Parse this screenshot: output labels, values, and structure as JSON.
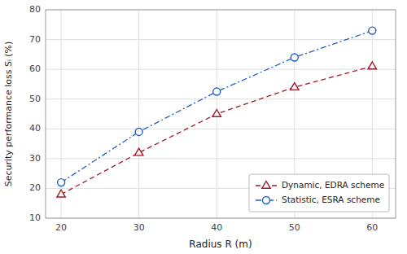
{
  "chart_data": {
    "type": "line",
    "x": [
      20,
      30,
      40,
      50,
      60
    ],
    "series": [
      {
        "name": "Dynamic, EDRA scheme",
        "color": "#A0192A",
        "values": [
          18.0,
          32.0,
          45.0,
          54.0,
          61.0
        ],
        "marker": "triangle",
        "line_style": "dashed"
      },
      {
        "name": "Statistic, ESRA scheme",
        "color": "#2060C0",
        "values": [
          22.0,
          39.0,
          52.5,
          64.0,
          73.0
        ],
        "marker": "circle",
        "line_style": "dash-dot"
      }
    ],
    "xlabel": "Radius R (m)",
    "ylabel": "Security performance loss Sₗ (%)",
    "xlim": [
      18,
      63
    ],
    "ylim": [
      10,
      80
    ],
    "xticks": [
      20,
      30,
      40,
      50,
      60
    ],
    "yticks": [
      10,
      20,
      30,
      40,
      50,
      60,
      70,
      80
    ],
    "grid": true,
    "legend": "lower right"
  }
}
